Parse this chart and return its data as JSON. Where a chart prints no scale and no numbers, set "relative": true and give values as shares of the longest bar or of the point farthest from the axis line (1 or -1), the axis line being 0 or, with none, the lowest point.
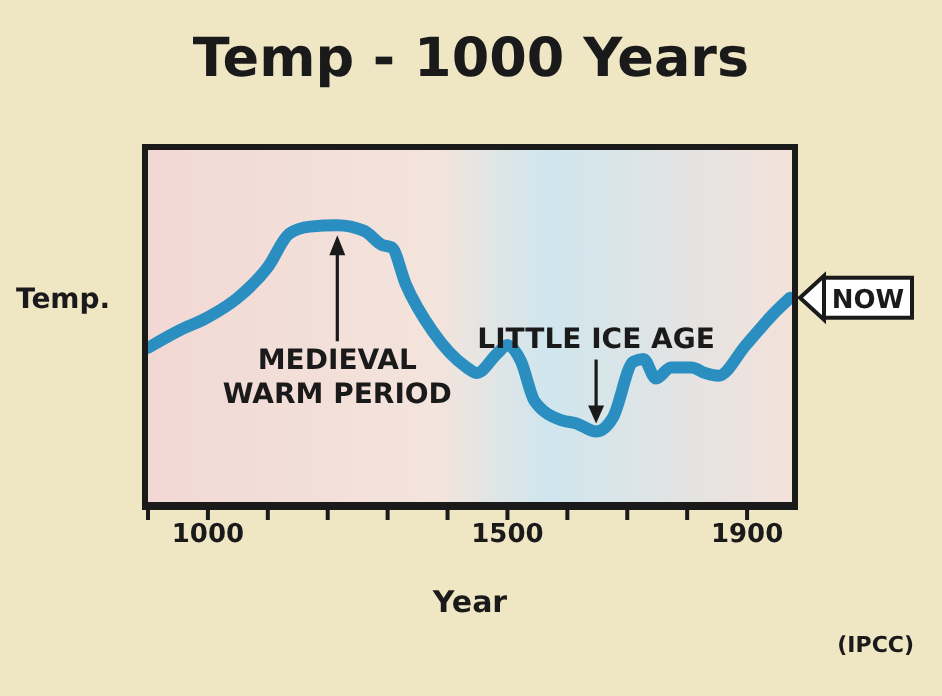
{
  "chart_data": {
    "type": "line",
    "title": "Temp - 1000 Years",
    "xlabel": "Year",
    "ylabel": "Temp.",
    "relative": true,
    "tick_labels": "x",
    "xlim": [
      900,
      1975
    ],
    "xticks": [
      {
        "value": 900,
        "label": null
      },
      1000,
      {
        "value": 1100,
        "label": null
      },
      {
        "value": 1200,
        "label": null
      },
      {
        "value": 1300,
        "label": null
      },
      {
        "value": 1400,
        "label": null
      },
      1500,
      {
        "value": 1600,
        "label": null
      },
      {
        "value": 1700,
        "label": null
      },
      {
        "value": 1800,
        "label": null
      },
      1900
    ],
    "x": [
      900,
      950,
      1000,
      1050,
      1100,
      1136,
      1170,
      1216,
      1261,
      1290,
      1307,
      1330,
      1375,
      1432,
      1449,
      1483,
      1500,
      1523,
      1545,
      1591,
      1614,
      1648,
      1676,
      1710,
      1727,
      1748,
      1773,
      1807,
      1830,
      1852,
      1898,
      1943,
      1972
    ],
    "series": [
      {
        "color": "#2a8fc0",
        "values": [
          0.56,
          0.62,
          0.67,
          0.74,
          0.85,
          0.97,
          0.995,
          1,
          0.98,
          0.93,
          0.92,
          0.79,
          0.62,
          0.49,
          0.47,
          0.54,
          0.57,
          0.51,
          0.37,
          0.3,
          0.29,
          0.26,
          0.31,
          0.51,
          0.52,
          0.45,
          0.49,
          0.49,
          0.47,
          0.46,
          0.57,
          0.68,
          0.74
        ]
      }
    ],
    "annotations": [
      {
        "text": "MEDIEVAL WARM PERIOD",
        "x": 1216,
        "y": 1
      },
      {
        "text": "LITTLE ICE AGE",
        "x": 1648,
        "y": 0.26
      },
      {
        "text": "NOW",
        "x": 1972,
        "y": 0.74
      },
      "(IPCC)"
    ]
  }
}
